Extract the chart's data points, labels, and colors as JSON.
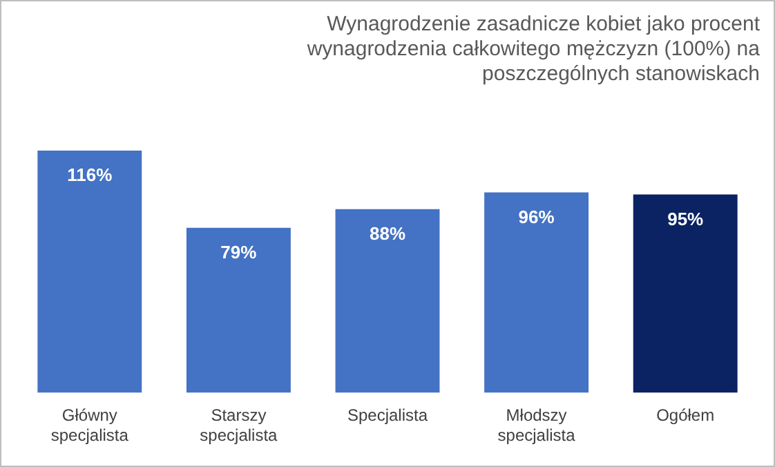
{
  "chart_data": {
    "type": "bar",
    "title": "Wynagrodzenie zasadnicze kobiet jako procent wynagrodzenia całkowitego mężczyzn (100%) na poszczególnych stanowiskach",
    "categories": [
      "Główny specjalista",
      "Starszy specjalista",
      "Specjalista",
      "Młodszy specjalista",
      "Ogółem"
    ],
    "values": [
      116,
      79,
      88,
      96,
      95
    ],
    "colors": [
      "#4472c4",
      "#4472c4",
      "#4472c4",
      "#4472c4",
      "#0b2263"
    ],
    "value_labels": [
      "116%",
      "79%",
      "88%",
      "96%",
      "95%"
    ],
    "grid": false,
    "legend": false
  }
}
